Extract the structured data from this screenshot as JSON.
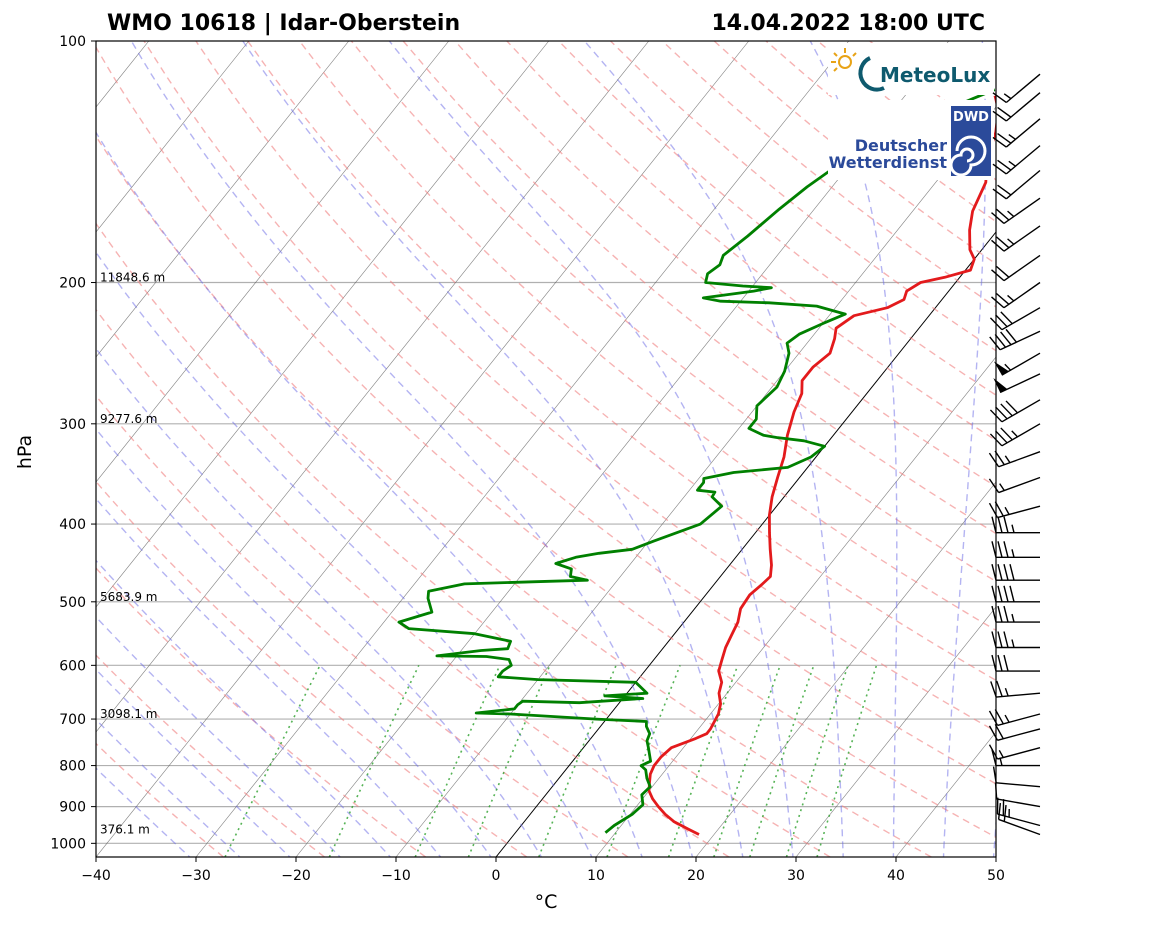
{
  "header": {
    "title_left": "WMO 10618 | Idar-Oberstein",
    "title_right": "14.04.2022 18:00 UTC"
  },
  "logos": {
    "meteolux": "MeteoLux",
    "dwd_abbr": "DWD",
    "dwd_line1": "Deutscher",
    "dwd_line2": "Wetterdienst",
    "meteolux_color": "#0e5a6e",
    "dwd_color": "#2b4a9a"
  },
  "chart_data": {
    "type": "skew-t log-p",
    "xlabel": "°C",
    "ylabel": "hPa",
    "xlim": [
      -40,
      50
    ],
    "ylim": [
      1000,
      100
    ],
    "xticks": [
      -40,
      -30,
      -20,
      -10,
      0,
      10,
      20,
      30,
      40,
      50
    ],
    "yticks": [
      100,
      200,
      300,
      400,
      500,
      600,
      700,
      800,
      900,
      1000
    ],
    "height_labels": [
      {
        "p": 200,
        "text": "11848.6 m"
      },
      {
        "p": 300,
        "text": "9277.6 m"
      },
      {
        "p": 500,
        "text": "5683.9 m"
      },
      {
        "p": 700,
        "text": "3098.1 m"
      },
      {
        "p": 975,
        "text": "376.1 m"
      }
    ],
    "colors": {
      "temperature": "#e31a1c",
      "dewpoint": "#008000",
      "dry_adiabat": "#f08080",
      "moist_adiabat": "#6a6ae6",
      "mixing_ratio": "#2ca02c",
      "isotherm": "#555555",
      "zero_isotherm": "#000000"
    },
    "series": [
      {
        "name": "temperature",
        "points": [
          [
            18.5,
            975
          ],
          [
            17,
            960
          ],
          [
            15,
            940
          ],
          [
            13.5,
            920
          ],
          [
            12.2,
            900
          ],
          [
            11,
            880
          ],
          [
            10,
            860
          ],
          [
            9.4,
            840
          ],
          [
            8.8,
            820
          ],
          [
            8.5,
            800
          ],
          [
            8.5,
            780
          ],
          [
            8.8,
            760
          ],
          [
            10.5,
            740
          ],
          [
            11.2,
            730
          ],
          [
            11.2,
            720
          ],
          [
            11,
            705
          ],
          [
            10.8,
            690
          ],
          [
            10.2,
            670
          ],
          [
            9.2,
            650
          ],
          [
            8.6,
            630
          ],
          [
            7.4,
            610
          ],
          [
            6.8,
            590
          ],
          [
            6.2,
            570
          ],
          [
            5.8,
            550
          ],
          [
            5.4,
            530
          ],
          [
            4.6,
            510
          ],
          [
            4.4,
            490
          ],
          [
            4.8,
            475
          ],
          [
            5,
            465
          ],
          [
            4.2,
            450
          ],
          [
            2.8,
            430
          ],
          [
            1.4,
            410
          ],
          [
            0,
            390
          ],
          [
            -1.2,
            370
          ],
          [
            -2.2,
            350
          ],
          [
            -3.2,
            330
          ],
          [
            -4.6,
            310
          ],
          [
            -5.8,
            290
          ],
          [
            -6.5,
            275
          ],
          [
            -7.5,
            265
          ],
          [
            -7.5,
            255
          ],
          [
            -6.9,
            245
          ],
          [
            -7.6,
            235
          ],
          [
            -8.3,
            228
          ],
          [
            -7.5,
            220
          ],
          [
            -4.8,
            215
          ],
          [
            -3.8,
            210
          ],
          [
            -4.2,
            205
          ],
          [
            -3.5,
            200
          ],
          [
            -1.5,
            197
          ],
          [
            0.5,
            193
          ],
          [
            0,
            187
          ],
          [
            -1.2,
            182
          ],
          [
            -2.8,
            172
          ],
          [
            -4,
            163
          ],
          [
            -5,
            150
          ],
          [
            -6.8,
            140
          ],
          [
            -8,
            130
          ],
          [
            -9.5,
            122
          ],
          [
            -11,
            117
          ]
        ]
      },
      {
        "name": "dewpoint",
        "points": [
          [
            9,
            970
          ],
          [
            9.3,
            950
          ],
          [
            10.2,
            920
          ],
          [
            10.5,
            895
          ],
          [
            9.6,
            870
          ],
          [
            9.8,
            850
          ],
          [
            8.8,
            830
          ],
          [
            8,
            810
          ],
          [
            7.2,
            800
          ],
          [
            7.8,
            790
          ],
          [
            6.5,
            760
          ],
          [
            5.8,
            745
          ],
          [
            5.5,
            730
          ],
          [
            4.6,
            715
          ],
          [
            4.2,
            705
          ],
          [
            -1,
            700
          ],
          [
            -10,
            690
          ],
          [
            -13.5,
            688
          ],
          [
            -10,
            680
          ],
          [
            -10,
            672
          ],
          [
            -9.8,
            665
          ],
          [
            -4,
            668
          ],
          [
            2,
            660
          ],
          [
            -2,
            655
          ],
          [
            2,
            650
          ],
          [
            0,
            630
          ],
          [
            -10,
            625
          ],
          [
            -14.2,
            620
          ],
          [
            -14.2,
            610
          ],
          [
            -13.8,
            600
          ],
          [
            -14.5,
            590
          ],
          [
            -17,
            585
          ],
          [
            -22,
            584
          ],
          [
            -18,
            575
          ],
          [
            -15.5,
            572
          ],
          [
            -15.8,
            560
          ],
          [
            -20,
            548
          ],
          [
            -27,
            540
          ],
          [
            -28.5,
            530
          ],
          [
            -26,
            515
          ],
          [
            -27.5,
            495
          ],
          [
            -28,
            485
          ],
          [
            -25,
            475
          ],
          [
            -18,
            472
          ],
          [
            -13,
            470
          ],
          [
            -15,
            465
          ],
          [
            -15.5,
            455
          ],
          [
            -17.5,
            448
          ],
          [
            -16,
            440
          ],
          [
            -14,
            435
          ],
          [
            -11,
            430
          ],
          [
            -9.5,
            420
          ],
          [
            -6.2,
            400
          ],
          [
            -5.5,
            380
          ],
          [
            -7.2,
            370
          ],
          [
            -7.3,
            365
          ],
          [
            -9.2,
            363
          ],
          [
            -9.2,
            355
          ],
          [
            -9.5,
            351
          ],
          [
            -7,
            345
          ],
          [
            -2,
            340
          ],
          [
            -0.5,
            330
          ],
          [
            0,
            320
          ],
          [
            -2.5,
            315
          ],
          [
            -5.5,
            312
          ],
          [
            -7,
            310
          ],
          [
            -9,
            304
          ],
          [
            -9,
            296
          ],
          [
            -10,
            285
          ],
          [
            -9.5,
            270
          ],
          [
            -10,
            258
          ],
          [
            -11,
            245
          ],
          [
            -12,
            238
          ],
          [
            -11.5,
            232
          ],
          [
            -10,
            225
          ],
          [
            -8.5,
            219
          ],
          [
            -12,
            214
          ],
          [
            -17,
            212
          ],
          [
            -22,
            211
          ],
          [
            -24,
            209
          ],
          [
            -19.5,
            205
          ],
          [
            -18,
            203
          ],
          [
            -21,
            202
          ],
          [
            -25,
            200
          ],
          [
            -25.5,
            195
          ],
          [
            -25,
            190
          ],
          [
            -25.4,
            185
          ],
          [
            -24.5,
            175
          ],
          [
            -23.5,
            162
          ],
          [
            -22.5,
            152
          ],
          [
            -21.5,
            145
          ],
          [
            -20,
            138
          ],
          [
            -18.5,
            131
          ],
          [
            -16.5,
            126
          ],
          [
            -14.8,
            122
          ],
          [
            -13,
            118
          ],
          [
            -11.5,
            115
          ]
        ]
      }
    ],
    "wind_barbs": [
      {
        "p": 975,
        "dir": 290,
        "kt": 20
      },
      {
        "p": 950,
        "dir": 285,
        "kt": 25
      },
      {
        "p": 900,
        "dir": 280,
        "kt": 10
      },
      {
        "p": 850,
        "dir": 275,
        "kt": 10
      },
      {
        "p": 800,
        "dir": 270,
        "kt": 15
      },
      {
        "p": 760,
        "dir": 255,
        "kt": 15
      },
      {
        "p": 720,
        "dir": 255,
        "kt": 20
      },
      {
        "p": 690,
        "dir": 255,
        "kt": 25
      },
      {
        "p": 650,
        "dir": 265,
        "kt": 25
      },
      {
        "p": 610,
        "dir": 270,
        "kt": 30
      },
      {
        "p": 570,
        "dir": 270,
        "kt": 35
      },
      {
        "p": 530,
        "dir": 270,
        "kt": 35
      },
      {
        "p": 500,
        "dir": 270,
        "kt": 40
      },
      {
        "p": 470,
        "dir": 270,
        "kt": 40
      },
      {
        "p": 440,
        "dir": 270,
        "kt": 35
      },
      {
        "p": 410,
        "dir": 270,
        "kt": 35
      },
      {
        "p": 380,
        "dir": 255,
        "kt": 25
      },
      {
        "p": 350,
        "dir": 250,
        "kt": 15
      },
      {
        "p": 325,
        "dir": 250,
        "kt": 25
      },
      {
        "p": 300,
        "dir": 240,
        "kt": 35
      },
      {
        "p": 280,
        "dir": 240,
        "kt": 40
      },
      {
        "p": 260,
        "dir": 245,
        "kt": 50
      },
      {
        "p": 245,
        "dir": 240,
        "kt": 55
      },
      {
        "p": 230,
        "dir": 245,
        "kt": 40
      },
      {
        "p": 215,
        "dir": 240,
        "kt": 30
      },
      {
        "p": 200,
        "dir": 235,
        "kt": 25
      },
      {
        "p": 185,
        "dir": 235,
        "kt": 20
      },
      {
        "p": 170,
        "dir": 235,
        "kt": 25
      },
      {
        "p": 157,
        "dir": 235,
        "kt": 25
      },
      {
        "p": 145,
        "dir": 230,
        "kt": 20
      },
      {
        "p": 135,
        "dir": 230,
        "kt": 25
      },
      {
        "p": 125,
        "dir": 230,
        "kt": 25
      },
      {
        "p": 116,
        "dir": 230,
        "kt": 20
      },
      {
        "p": 110,
        "dir": 230,
        "kt": 15
      }
    ]
  }
}
